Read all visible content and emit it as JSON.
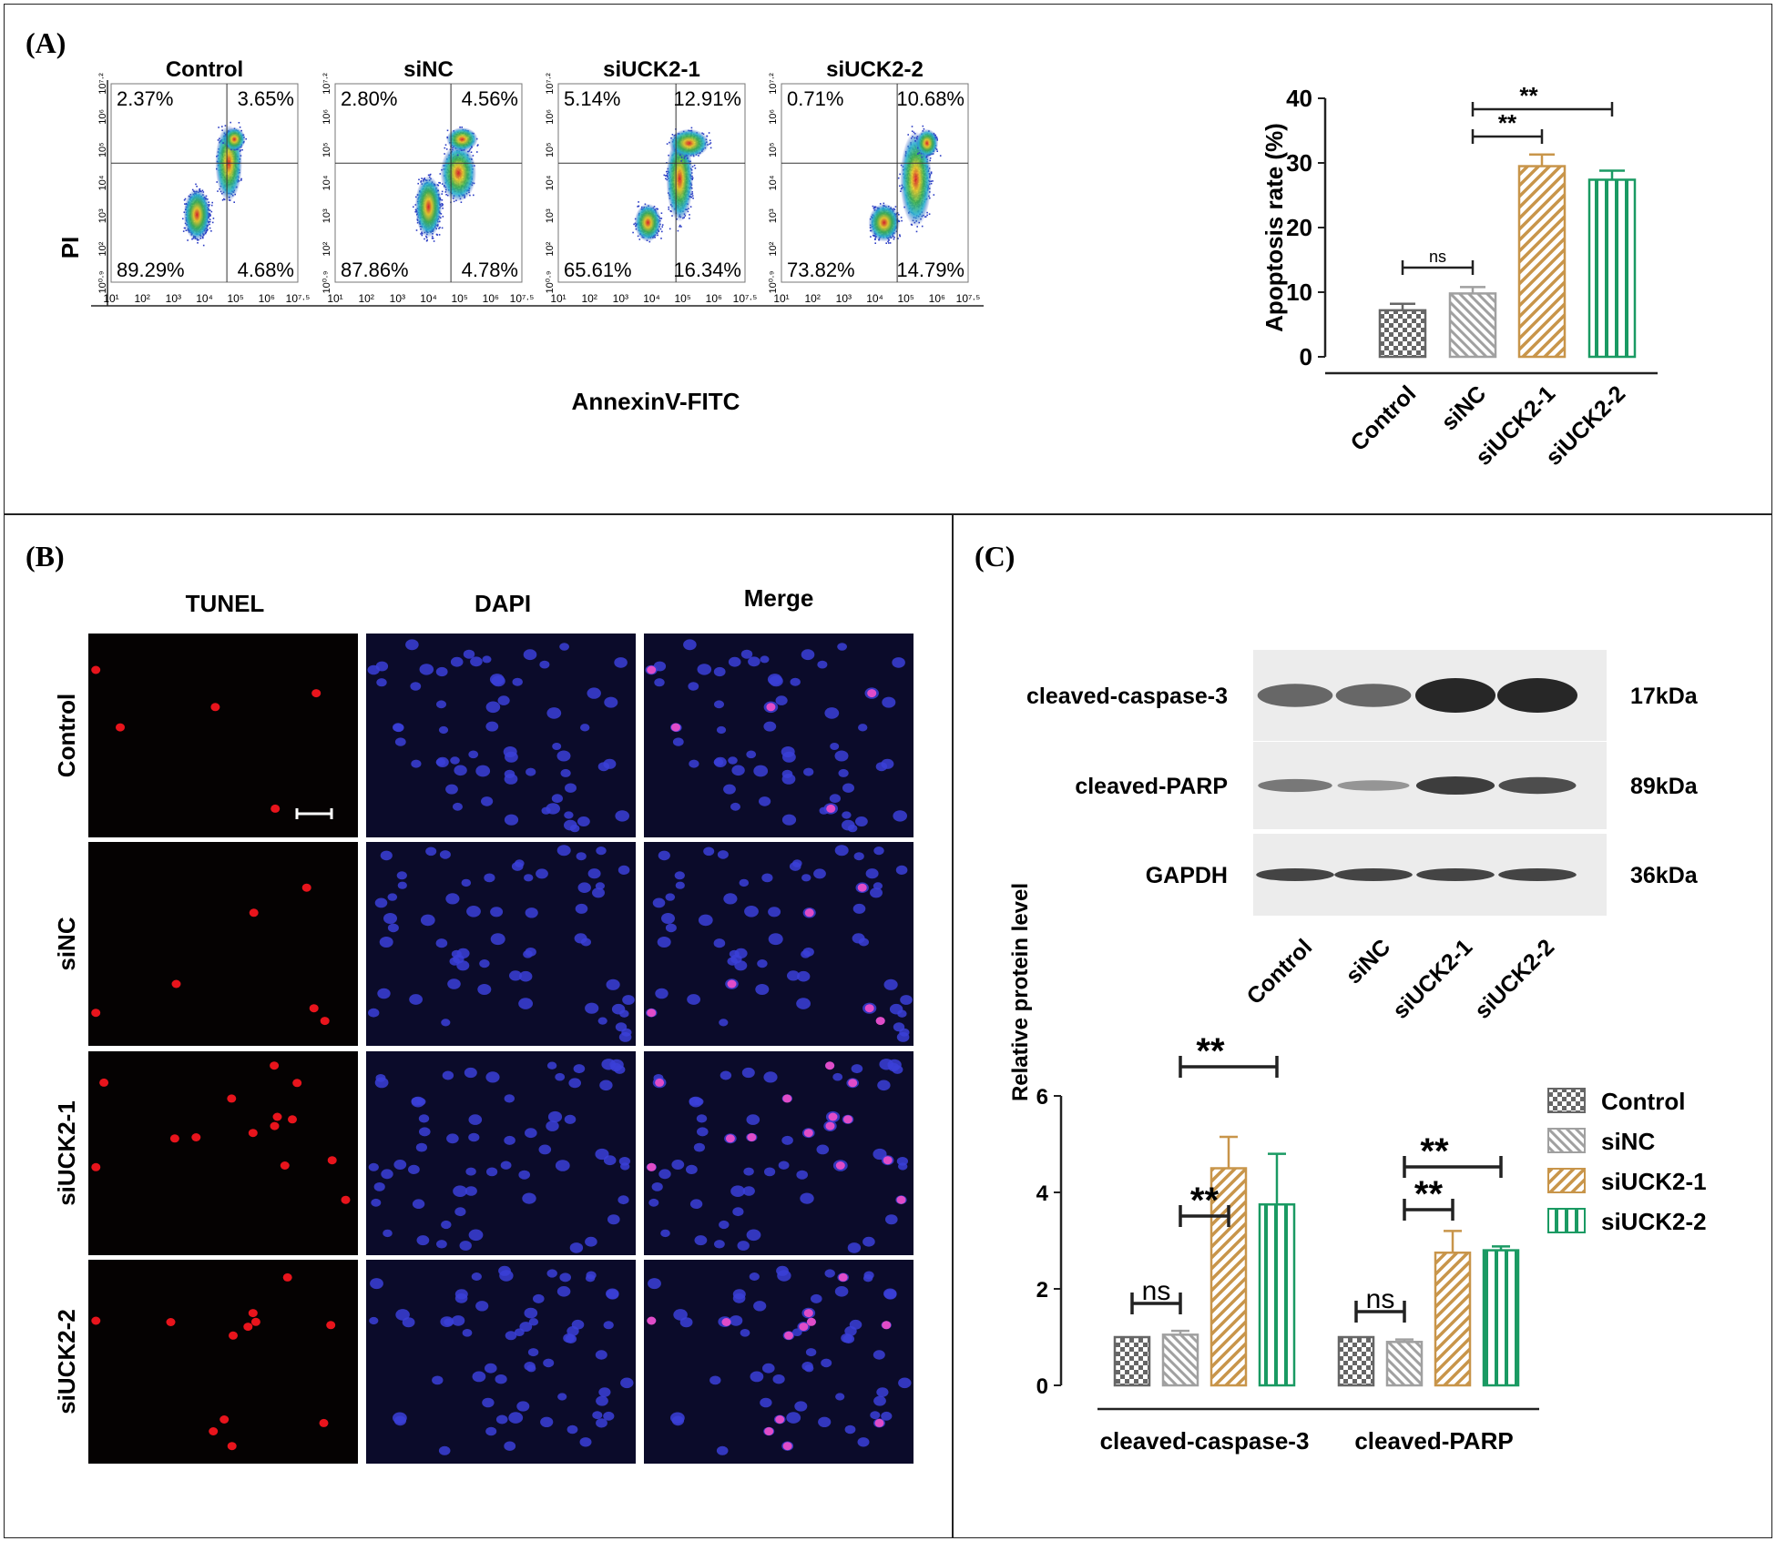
{
  "panels": {
    "A": "(A)",
    "B": "(B)",
    "C": "(C)"
  },
  "flow": {
    "ylabel": "PI",
    "xlabel": "AnnexinV-FITC",
    "x_ticks": [
      "10¹",
      "10²",
      "10³",
      "10⁴",
      "10⁵",
      "10⁶",
      "10⁷·⁵"
    ],
    "y_ticks": [
      "10⁰·⁹",
      "10²",
      "10³",
      "10⁴",
      "10⁵",
      "10⁶",
      "10⁷·²"
    ],
    "plots": [
      {
        "title": "Control",
        "ul": "2.37%",
        "ur": "3.65%",
        "ll": "89.29%",
        "lr": "4.68%"
      },
      {
        "title": "siNC",
        "ul": "2.80%",
        "ur": "4.56%",
        "ll": "87.86%",
        "lr": "4.78%"
      },
      {
        "title": "siUCK2-1",
        "ul": "5.14%",
        "ur": "12.91%",
        "ll": "65.61%",
        "lr": "16.34%"
      },
      {
        "title": "siUCK2-2",
        "ul": "0.71%",
        "ur": "10.68%",
        "ll": "73.82%",
        "lr": "14.79%"
      }
    ]
  },
  "tunel": {
    "columns": [
      "TUNEL",
      "DAPI",
      "Merge"
    ],
    "rows": [
      "Control",
      "siNC",
      "siUCK2-1",
      "siUCK2-2"
    ]
  },
  "western": {
    "bands": [
      {
        "name": "cleaved-caspase-3",
        "size": "17kDa"
      },
      {
        "name": "cleaved-PARP",
        "size": "89kDa"
      },
      {
        "name": "GAPDH",
        "size": "36kDa"
      }
    ],
    "lanes": [
      "Control",
      "siNC",
      "siUCK2-1",
      "siUCK2-2"
    ]
  },
  "colors": {
    "control": "#666666",
    "sinc": "#a0a0a0",
    "siuck2_1": "#c8954a",
    "siuck2_2": "#1a9a63",
    "frame": "#222222"
  },
  "chart_data": [
    {
      "type": "bar",
      "ylabel": "Apoptosis rate (%)",
      "categories": [
        "Control",
        "siNC",
        "siUCK2-1",
        "siUCK2-2"
      ],
      "values": [
        7.2,
        9.8,
        29.5,
        27.4
      ],
      "errors": [
        1.0,
        1.0,
        1.8,
        1.4
      ],
      "ylim": [
        0,
        40
      ],
      "yticks": [
        "0",
        "10",
        "20",
        "30",
        "40"
      ],
      "significance": [
        {
          "from": "Control",
          "to": "siNC",
          "label": "ns"
        },
        {
          "from": "siNC",
          "to": "siUCK2-1",
          "label": "**"
        },
        {
          "from": "siNC",
          "to": "siUCK2-2",
          "label": "**"
        }
      ]
    },
    {
      "type": "bar",
      "ylabel": "Relative protein level",
      "categories": [
        "cleaved-caspase-3",
        "cleaved-PARP"
      ],
      "series": [
        {
          "name": "Control",
          "values": [
            1.0,
            1.0
          ],
          "errors": [
            0.0,
            0.0
          ]
        },
        {
          "name": "siNC",
          "values": [
            1.05,
            0.9
          ],
          "errors": [
            0.08,
            0.05
          ]
        },
        {
          "name": "siUCK2-1",
          "values": [
            4.5,
            2.75
          ],
          "errors": [
            0.65,
            0.45
          ]
        },
        {
          "name": "siUCK2-2",
          "values": [
            3.75,
            2.8
          ],
          "errors": [
            1.05,
            0.08
          ]
        }
      ],
      "ylim": [
        0,
        6
      ],
      "yticks": [
        "0",
        "2",
        "4",
        "6"
      ],
      "significance": [
        {
          "group": "cleaved-caspase-3",
          "from": "Control",
          "to": "siNC",
          "label": "ns"
        },
        {
          "group": "cleaved-caspase-3",
          "from": "siNC",
          "to": "siUCK2-1",
          "label": "**"
        },
        {
          "group": "cleaved-caspase-3",
          "from": "siNC",
          "to": "siUCK2-2",
          "label": "**"
        },
        {
          "group": "cleaved-PARP",
          "from": "Control",
          "to": "siNC",
          "label": "ns"
        },
        {
          "group": "cleaved-PARP",
          "from": "siNC",
          "to": "siUCK2-1",
          "label": "**"
        },
        {
          "group": "cleaved-PARP",
          "from": "siNC",
          "to": "siUCK2-2",
          "label": "**"
        }
      ],
      "legend": "right"
    }
  ]
}
